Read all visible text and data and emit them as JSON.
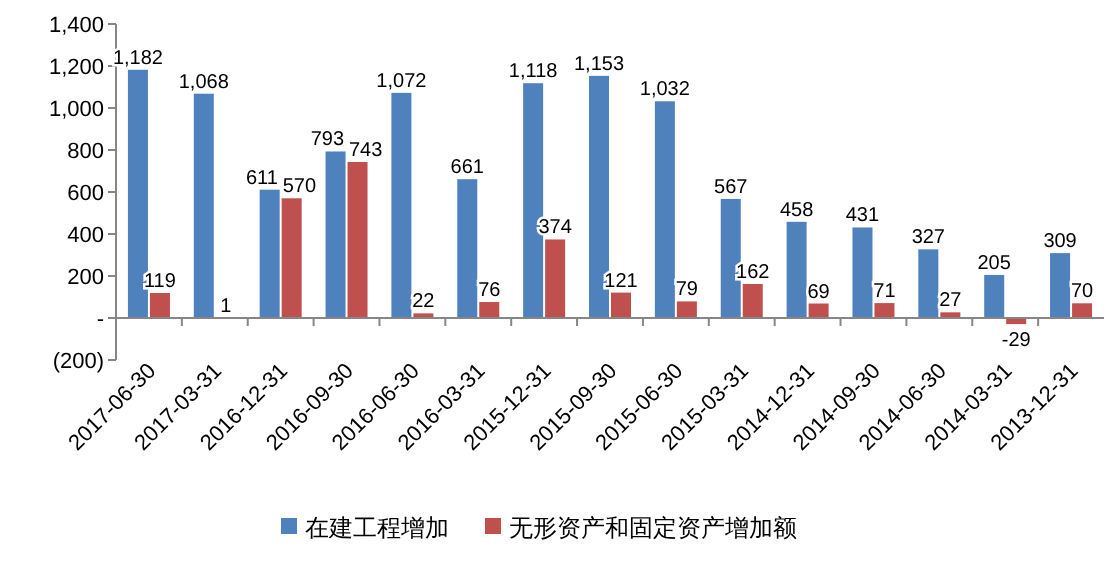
{
  "chart_data": {
    "type": "bar",
    "categories": [
      "2017-06-30",
      "2017-03-31",
      "2016-12-31",
      "2016-09-30",
      "2016-06-30",
      "2016-03-31",
      "2015-12-31",
      "2015-09-30",
      "2015-06-30",
      "2015-03-31",
      "2014-12-31",
      "2014-09-30",
      "2014-06-30",
      "2014-03-31",
      "2013-12-31"
    ],
    "series": [
      {
        "name": "在建工程增加",
        "color": "#4f81bd",
        "values": [
          1182,
          1068,
          611,
          793,
          1072,
          661,
          1118,
          1153,
          1032,
          567,
          458,
          431,
          327,
          205,
          309
        ],
        "value_labels": [
          "1,182",
          "1,068",
          "611",
          "793",
          "1,072",
          "661",
          "1,118",
          "1,153",
          "1,032",
          "567",
          "458",
          "431",
          "327",
          "205",
          "309"
        ]
      },
      {
        "name": "无形资产和固定资产增加额",
        "color": "#c0504d",
        "values": [
          119,
          1,
          570,
          743,
          22,
          76,
          374,
          121,
          79,
          162,
          69,
          71,
          27,
          -29,
          70
        ],
        "value_labels": [
          "119",
          "1",
          "570",
          "743",
          "22",
          "76",
          "374",
          "121",
          "79",
          "162",
          "69",
          "71",
          "27",
          "-29",
          "70"
        ]
      }
    ],
    "ylim": [
      -200,
      1400
    ],
    "yticks": [
      {
        "value": -200,
        "label": "(200)"
      },
      {
        "value": 0,
        "label": "-"
      },
      {
        "value": 200,
        "label": "200"
      },
      {
        "value": 400,
        "label": "400"
      },
      {
        "value": 600,
        "label": "600"
      },
      {
        "value": 800,
        "label": "800"
      },
      {
        "value": 1000,
        "label": "1,000"
      },
      {
        "value": 1200,
        "label": "1,200"
      },
      {
        "value": 1400,
        "label": "1,400"
      }
    ],
    "legend": "bottom"
  }
}
